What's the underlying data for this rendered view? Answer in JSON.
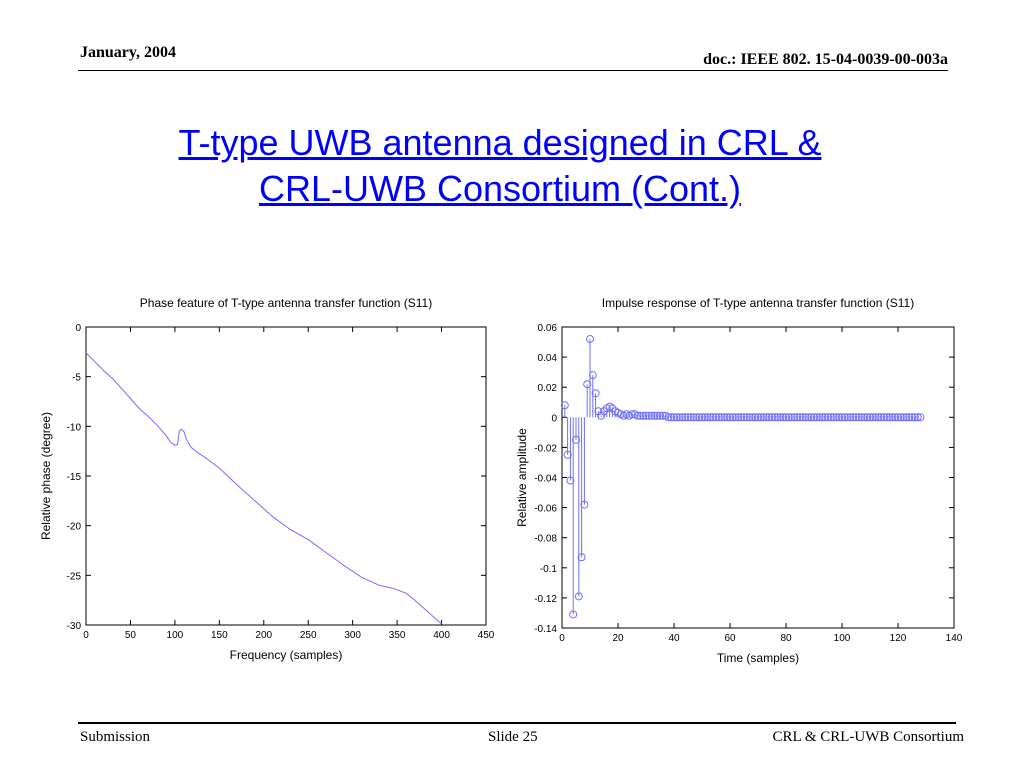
{
  "header": {
    "date": "January, 2004",
    "doc": "doc.: IEEE 802. 15-04-0039-00-003a"
  },
  "slide": {
    "title_line1": "T-type UWB antenna designed in CRL &",
    "title_line2": "CRL-UWB Consortium (Cont.)"
  },
  "footer": {
    "left": "Submission",
    "center": "Slide 25",
    "right": "CRL & CRL-UWB Consortium"
  },
  "chart_data": [
    {
      "type": "line",
      "title": "Phase feature of T-type antenna transfer function (S11)",
      "xlabel": "Frequency (samples)",
      "ylabel": "Relative phase (degree)",
      "xlim": [
        0,
        450
      ],
      "ylim": [
        -30,
        0
      ],
      "xticks": [
        0,
        50,
        100,
        150,
        200,
        250,
        300,
        350,
        400,
        450
      ],
      "yticks": [
        0,
        -5,
        -10,
        -15,
        -20,
        -25,
        -30
      ],
      "grid": false,
      "color": "#6f6fff",
      "series": [
        {
          "x": [
            0,
            10,
            20,
            30,
            40,
            50,
            60,
            70,
            80,
            90,
            95,
            100,
            103,
            105,
            107,
            110,
            113,
            118,
            125,
            135,
            150,
            170,
            190,
            210,
            230,
            250,
            270,
            290,
            310,
            330,
            345,
            360,
            370,
            380,
            390,
            400
          ],
          "y": [
            -2.6,
            -3.5,
            -4.4,
            -5.2,
            -6.2,
            -7.2,
            -8.2,
            -9.0,
            -9.9,
            -10.9,
            -11.6,
            -11.9,
            -11.8,
            -10.5,
            -10.3,
            -10.5,
            -11.3,
            -12.1,
            -12.6,
            -13.2,
            -14.2,
            -15.9,
            -17.5,
            -19.1,
            -20.4,
            -21.4,
            -22.7,
            -24.0,
            -25.2,
            -26.0,
            -26.3,
            -26.8,
            -27.5,
            -28.3,
            -29.1,
            -29.9
          ]
        }
      ]
    },
    {
      "type": "scatter",
      "subtype": "stem",
      "title": "Impulse response of T-type antenna transfer function (S11)",
      "xlabel": "Time (samples)",
      "ylabel": "Relative amplitude",
      "xlim": [
        0,
        140
      ],
      "ylim": [
        -0.14,
        0.06
      ],
      "xticks": [
        0,
        20,
        40,
        60,
        80,
        100,
        120,
        140
      ],
      "yticks": [
        0.06,
        0.04,
        0.02,
        0,
        -0.02,
        -0.04,
        -0.06,
        -0.08,
        -0.1,
        -0.12,
        -0.14
      ],
      "ytick_labels": [
        "0.06",
        "0.04",
        "0.02",
        "0",
        "-0.02",
        "-0.04",
        "-0.06",
        "-0.08",
        "-0.1",
        "-0.12",
        "-0.14"
      ],
      "grid": false,
      "color": "#6f6fff",
      "series": [
        {
          "x": [
            1,
            2,
            3,
            4,
            5,
            6,
            7,
            8,
            9,
            10,
            11,
            12,
            13,
            14,
            15,
            16,
            17,
            18,
            19,
            20,
            21,
            22,
            23,
            24,
            25,
            26,
            27,
            28,
            29,
            30,
            31,
            32,
            33,
            34,
            35,
            36,
            37,
            38,
            39,
            40,
            41,
            42,
            43,
            44,
            45,
            46,
            47,
            48,
            49,
            50,
            51,
            52,
            53,
            54,
            55,
            56,
            57,
            58,
            59,
            60,
            61,
            62,
            63,
            64,
            65,
            66,
            67,
            68,
            69,
            70,
            71,
            72,
            73,
            74,
            75,
            76,
            77,
            78,
            79,
            80,
            81,
            82,
            83,
            84,
            85,
            86,
            87,
            88,
            89,
            90,
            91,
            92,
            93,
            94,
            95,
            96,
            97,
            98,
            99,
            100,
            101,
            102,
            103,
            104,
            105,
            106,
            107,
            108,
            109,
            110,
            111,
            112,
            113,
            114,
            115,
            116,
            117,
            118,
            119,
            120,
            121,
            122,
            123,
            124,
            125,
            126,
            127,
            128
          ],
          "y": [
            0.008,
            -0.025,
            -0.042,
            -0.131,
            -0.015,
            -0.119,
            -0.093,
            -0.058,
            0.022,
            0.052,
            0.028,
            0.016,
            0.004,
            0.001,
            0.004,
            0.006,
            0.007,
            0.006,
            0.004,
            0.003,
            0.002,
            0.001,
            0.002,
            0.001,
            0.002,
            0.002,
            0.001,
            0.001,
            0.001,
            0.001,
            0.001,
            0.001,
            0.001,
            0.001,
            0.001,
            0.001,
            0.001,
            0.0,
            0.0,
            0.0,
            0.0,
            0.0,
            0.0,
            0.0,
            0.0,
            0.0,
            0.0,
            0.0,
            0.0,
            0.0,
            0.0,
            0.0,
            0.0,
            0.0,
            0.0,
            0.0,
            0.0,
            0.0,
            0.0,
            0.0,
            0.0,
            0.0,
            0.0,
            0.0,
            0.0,
            0.0,
            0.0,
            0.0,
            0.0,
            0.0,
            0.0,
            0.0,
            0.0,
            0.0,
            0.0,
            0.0,
            0.0,
            0.0,
            0.0,
            0.0,
            0.0,
            0.0,
            0.0,
            0.0,
            0.0,
            0.0,
            0.0,
            0.0,
            0.0,
            0.0,
            0.0,
            0.0,
            0.0,
            0.0,
            0.0,
            0.0,
            0.0,
            0.0,
            0.0,
            0.0,
            0.0,
            0.0,
            0.0,
            0.0,
            0.0,
            0.0,
            0.0,
            0.0,
            0.0,
            0.0,
            0.0,
            0.0,
            0.0,
            0.0,
            0.0,
            0.0,
            0.0,
            0.0,
            0.0,
            0.0,
            0.0,
            0.0,
            0.0,
            0.0,
            0.0,
            0.0,
            0.0,
            0.0
          ]
        }
      ]
    }
  ]
}
